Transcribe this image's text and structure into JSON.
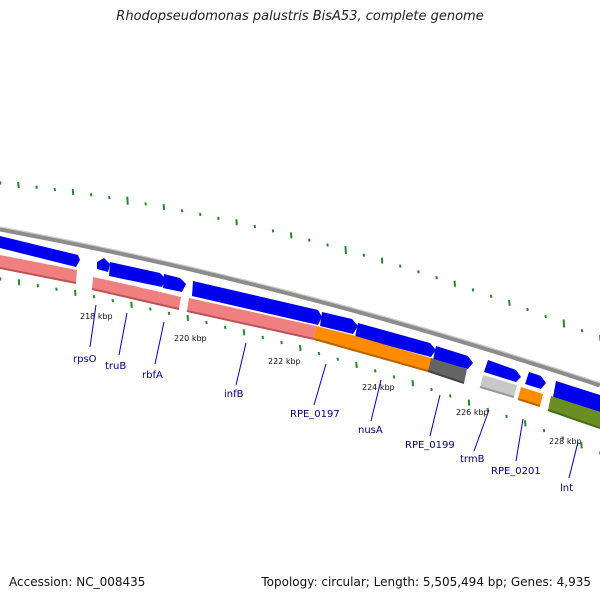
{
  "title": "Rhodopseudomonas palustris BisA53, complete genome",
  "footer": {
    "accession": "Accession: NC_008435",
    "summary": "Topology: circular; Length: 5,505,494 bp; Genes: 4,935"
  },
  "colors": {
    "backbone": "#8c8c8c",
    "forward_cds": "#0000ee",
    "gene_bar": "#f08080",
    "orange": "#ff8c00",
    "dark_gray": "#646464",
    "light_gray": "#c8c8c8",
    "olive": "#6b8e23",
    "gc_ticks": "#228b22",
    "label": "#00008b"
  },
  "kbp_labels": [
    "218 kbp",
    "220 kbp",
    "222 kbp",
    "224 kbp",
    "226 kbp",
    "228 kbp"
  ],
  "genes": [
    "rpsO",
    "truB",
    "rbfA",
    "infB",
    "RPE_0197",
    "nusA",
    "RPE_0199",
    "trmB",
    "RPE_0201",
    "lnt"
  ]
}
